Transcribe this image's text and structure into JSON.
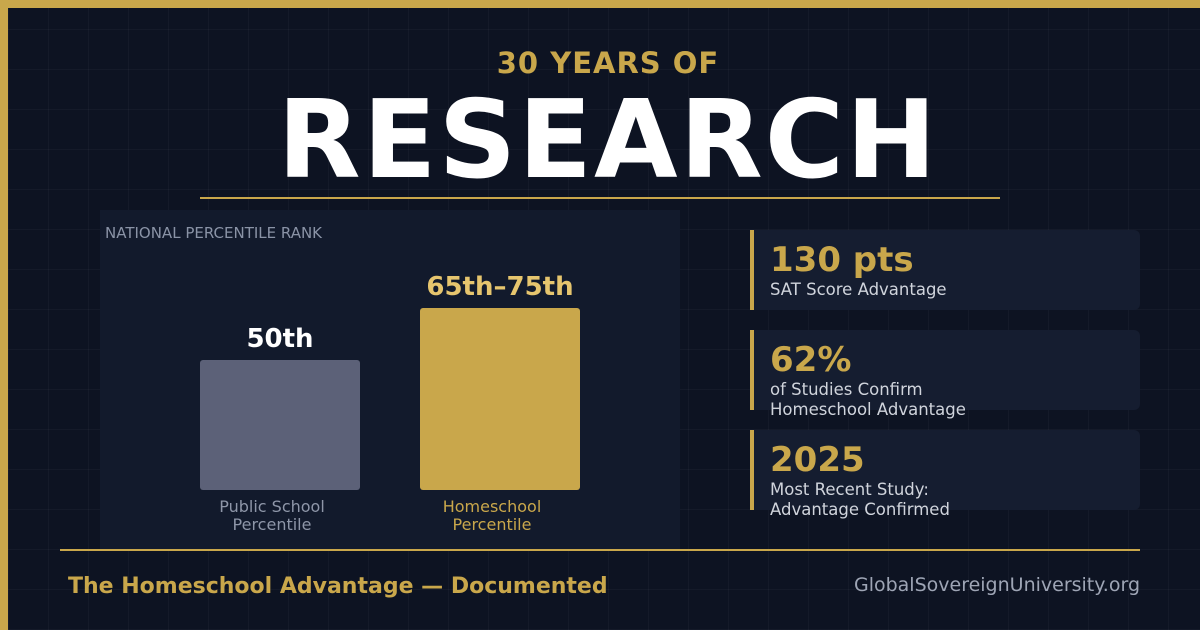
{
  "header": {
    "kicker": "30 YEARS OF",
    "title": "RESEARCH"
  },
  "chart_data": {
    "type": "bar",
    "title": "NATIONAL PERCENTILE RANK",
    "categories": [
      "Public School Percentile",
      "Homeschool Percentile"
    ],
    "values": [
      50,
      70
    ],
    "value_labels": [
      "50th",
      "65th–75th"
    ],
    "colors": [
      "#5c6178",
      "#c9a74b"
    ],
    "label_colors": [
      "#ffffff",
      "#e6c56e"
    ],
    "category_colors": [
      "#8e96a8",
      "#c9a74b"
    ]
  },
  "stats": [
    {
      "value": "130 pts",
      "label": "SAT Score Advantage"
    },
    {
      "value": "62%",
      "label": "of Studies Confirm Homeschool Advantage"
    },
    {
      "value": "2025",
      "label": "Most Recent Study: Advantage Confirmed"
    }
  ],
  "footer": {
    "tagline": "The Homeschool Advantage — Documented",
    "site": "GlobalSovereignUniversity.org"
  }
}
